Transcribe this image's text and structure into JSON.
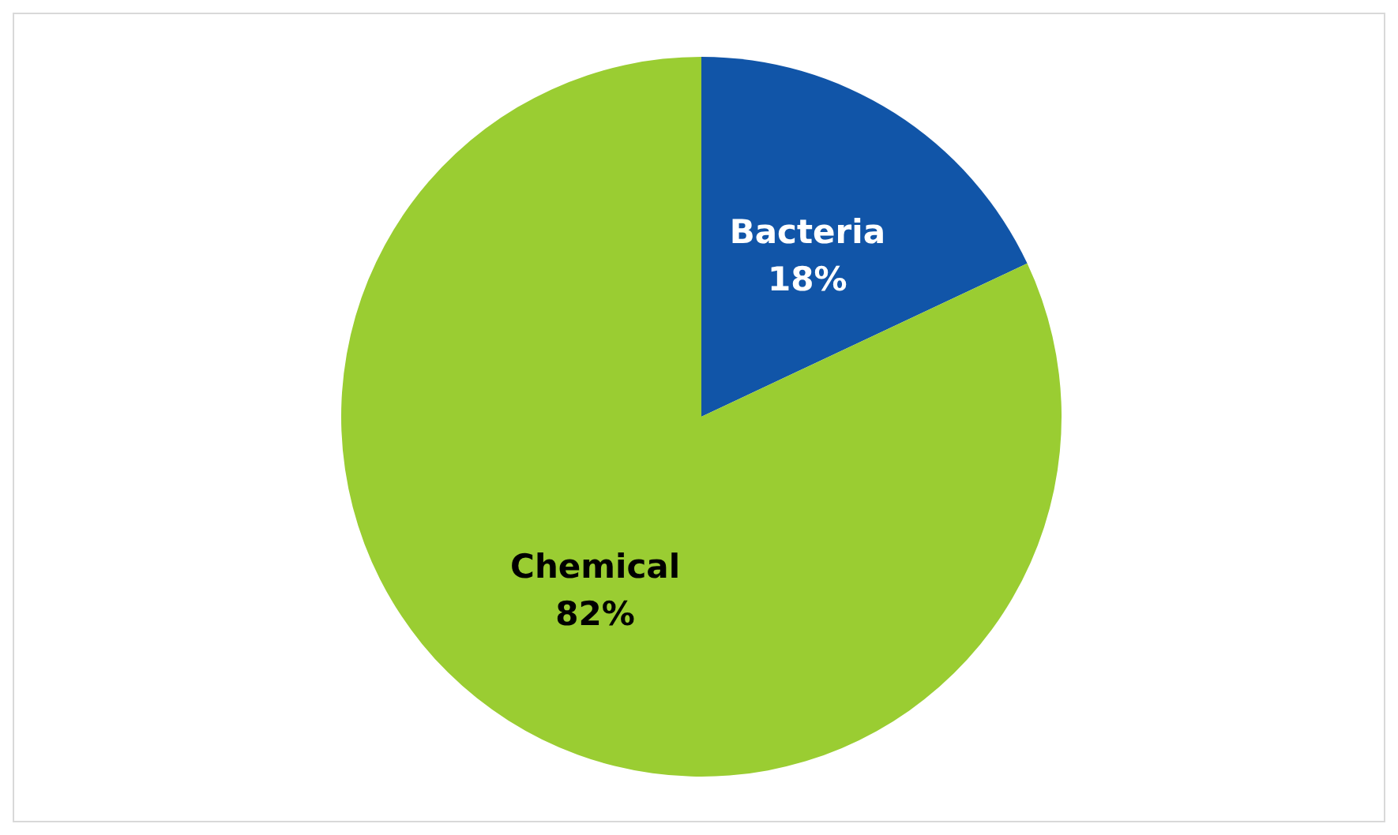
{
  "chart_data": {
    "type": "pie",
    "categories": [
      "Bacteria",
      "Chemical"
    ],
    "values": [
      18,
      82
    ],
    "colors": [
      "#1155a8",
      "#9acd32"
    ],
    "value_labels": [
      "18%",
      "82%"
    ],
    "legend": false
  }
}
